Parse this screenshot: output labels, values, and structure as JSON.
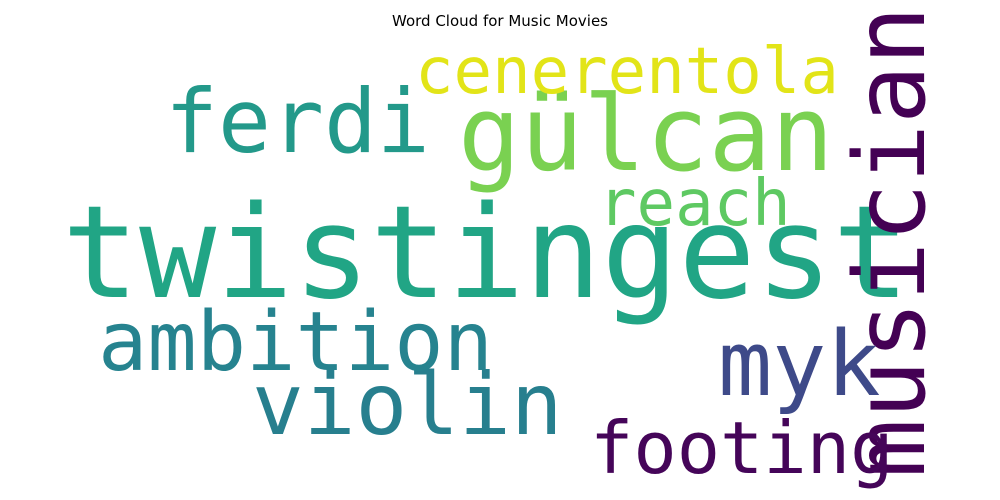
{
  "chart_data": {
    "type": "wordcloud",
    "title": "Word Cloud for Music Movies",
    "words": [
      {
        "text": "twistingest",
        "weight": 1.0,
        "color": "#21a585",
        "orientation": "horizontal"
      },
      {
        "text": "gülcan",
        "weight": 0.85,
        "color": "#7ad151",
        "orientation": "horizontal"
      },
      {
        "text": "musician",
        "weight": 0.75,
        "color": "#440154",
        "orientation": "vertical"
      },
      {
        "text": "violin",
        "weight": 0.7,
        "color": "#277f8e",
        "orientation": "horizontal"
      },
      {
        "text": "ferdi",
        "weight": 0.65,
        "color": "#23998a",
        "orientation": "horizontal"
      },
      {
        "text": "ambition",
        "weight": 0.65,
        "color": "#26838f",
        "orientation": "horizontal"
      },
      {
        "text": "myk",
        "weight": 0.65,
        "color": "#3e4a89",
        "orientation": "horizontal"
      },
      {
        "text": "cenerentola",
        "weight": 0.55,
        "color": "#e2e418",
        "orientation": "horizontal"
      },
      {
        "text": "footing",
        "weight": 0.55,
        "color": "#450559",
        "orientation": "horizontal"
      },
      {
        "text": "reach",
        "weight": 0.5,
        "color": "#5ec962",
        "orientation": "horizontal"
      }
    ]
  }
}
